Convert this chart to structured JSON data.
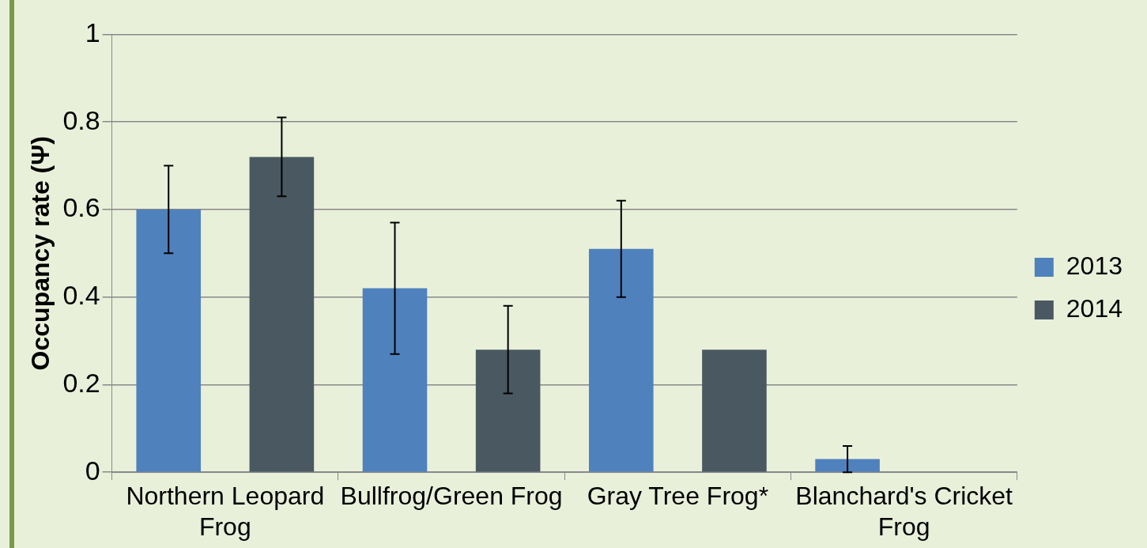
{
  "chart_data": {
    "type": "bar",
    "ylabel": "Occupancy rate (Ψ)",
    "categories": [
      "Northern Leopard Frog",
      "Bullfrog/Green Frog",
      "Gray Tree Frog*",
      "Blanchard's Cricket Frog"
    ],
    "series": [
      {
        "name": "2013",
        "color": "#4f81bd",
        "values": [
          0.6,
          0.42,
          0.51,
          0.03
        ],
        "errors": [
          [
            0.5,
            0.7
          ],
          [
            0.27,
            0.57
          ],
          [
            0.4,
            0.62
          ],
          [
            0,
            0.06
          ]
        ]
      },
      {
        "name": "2014",
        "color": "#4a5961",
        "values": [
          0.72,
          0.28,
          0.28,
          null
        ],
        "errors": [
          [
            0.63,
            0.81
          ],
          [
            0.18,
            0.38
          ],
          null,
          null
        ]
      }
    ],
    "ylim": [
      0,
      1
    ],
    "yticks": [
      0,
      0.2,
      0.4,
      0.6,
      0.8,
      1
    ],
    "grid": "y",
    "legend": "right"
  }
}
